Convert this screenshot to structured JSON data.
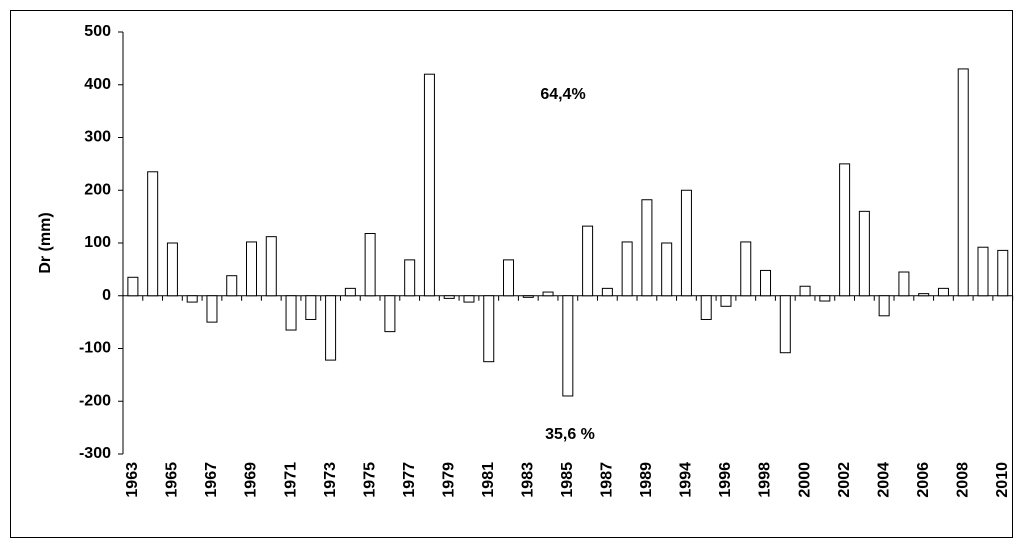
{
  "chart_data": {
    "type": "bar",
    "ylabel": "Dr (mm)",
    "annotations": [
      "64,4%",
      "35,6 %"
    ],
    "categories": [
      "1963",
      null,
      "1965",
      null,
      "1967",
      null,
      "1969",
      null,
      "1971",
      null,
      "1973",
      null,
      "1975",
      null,
      "1977",
      null,
      "1979",
      null,
      "1981",
      null,
      "1983",
      null,
      "1985",
      null,
      "1987",
      null,
      "1989",
      null,
      "1994",
      null,
      "1996",
      null,
      "1998",
      null,
      "2000",
      null,
      "2002",
      null,
      "2004",
      null,
      "2006",
      null,
      "2008",
      null,
      "2010"
    ],
    "values": [
      35,
      235,
      100,
      -12,
      -50,
      38,
      102,
      112,
      -65,
      -45,
      -122,
      14,
      118,
      -68,
      68,
      420,
      -5,
      -12,
      -125,
      68,
      -3,
      7,
      -190,
      132,
      14,
      102,
      182,
      100,
      200,
      -45,
      -20,
      102,
      48,
      -108,
      18,
      -10,
      250,
      160,
      -38,
      45,
      4,
      14,
      430,
      92,
      86
    ],
    "color": "#ffffff",
    "ylim": [
      -300,
      500
    ],
    "yticks": [
      -300,
      -200,
      -100,
      0,
      100,
      200,
      300,
      400,
      500
    ],
    "grid": false
  }
}
